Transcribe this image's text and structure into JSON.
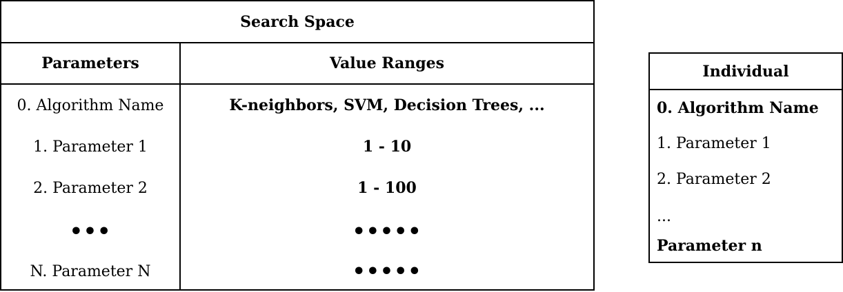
{
  "search_space": {
    "title": "Search Space",
    "headers": {
      "parameters": "Parameters",
      "value_ranges": "Value Ranges"
    },
    "rows": [
      {
        "parameter": "0. Algorithm Name",
        "range": "K-neighbors, SVM, Decision Trees, ..."
      },
      {
        "parameter": "1. Parameter 1",
        "range": "1 - 10"
      },
      {
        "parameter": "2. Parameter 2",
        "range": "1 - 100"
      },
      {
        "parameter": "•••",
        "range": "•••••"
      },
      {
        "parameter": "N. Parameter N",
        "range": "•••••"
      }
    ]
  },
  "individual": {
    "title": "Individual",
    "items": [
      "0. Algorithm Name",
      "1. Parameter 1",
      "2. Parameter 2",
      "...",
      "Parameter n"
    ]
  }
}
